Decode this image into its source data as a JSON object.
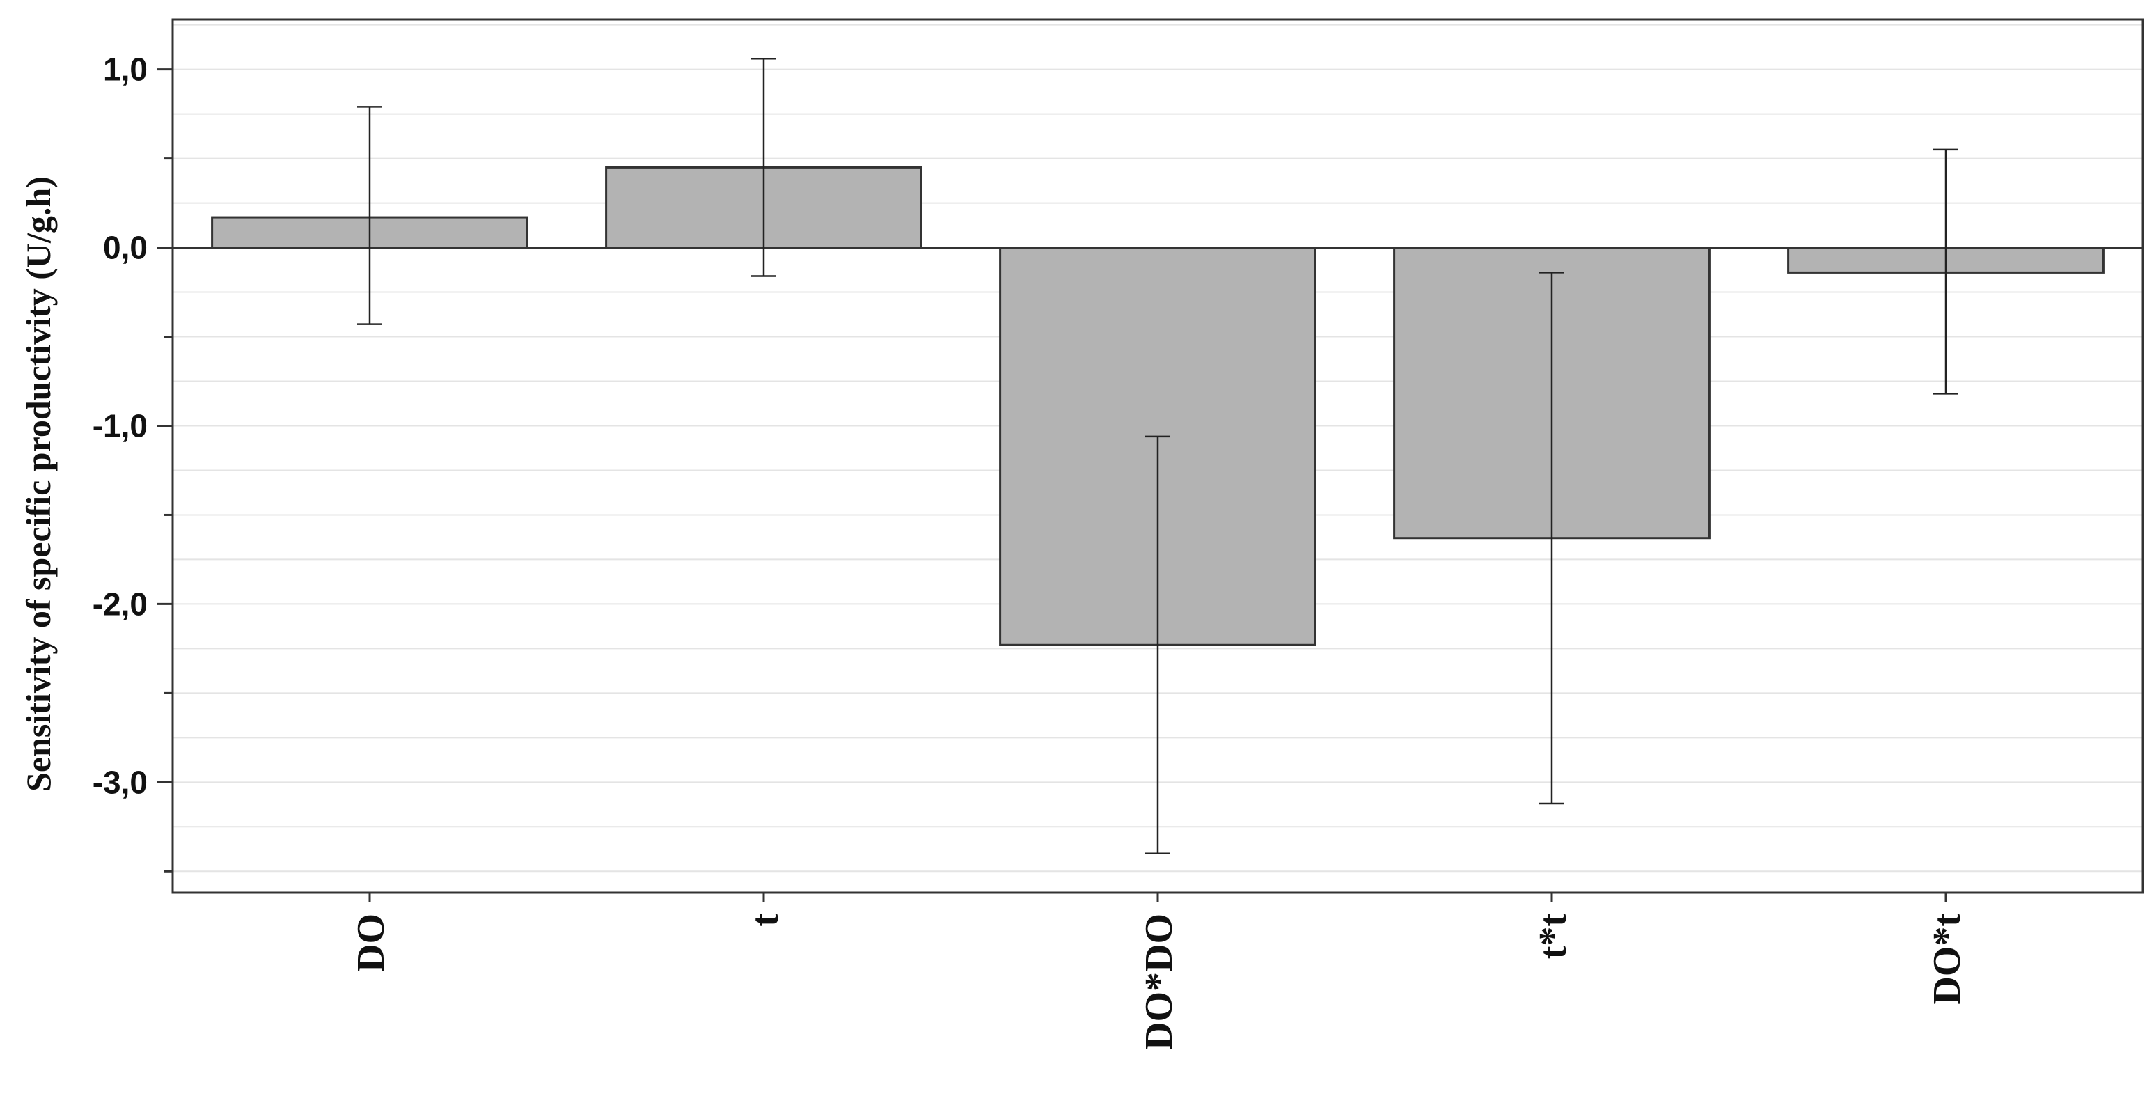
{
  "chart_data": {
    "type": "bar",
    "title": "",
    "xlabel": "",
    "ylabel": "Sensitivity of specific productivity (U/g.h)",
    "categories": [
      "DO",
      "t",
      "DO*DO",
      "t*t",
      "DO*t"
    ],
    "values": [
      0.17,
      0.45,
      -2.23,
      -1.63,
      -0.14
    ],
    "error_low": [
      -0.43,
      -0.16,
      -3.4,
      -3.12,
      -0.82
    ],
    "error_high": [
      0.79,
      1.06,
      -1.06,
      -0.14,
      0.55
    ],
    "ylim": [
      -3.62,
      1.28
    ],
    "yticks": [
      1.0,
      0.0,
      -1.0,
      -2.0,
      -3.0
    ],
    "ytick_labels": [
      "1,0",
      "0,0",
      "-1,0",
      "-2,0",
      "-3,0"
    ],
    "grid": true,
    "legend": "none",
    "colors": {
      "bar_fill": "#b3b3b3",
      "bar_stroke": "#333333",
      "grid": "#e4e4e4",
      "axis": "#333333"
    }
  }
}
